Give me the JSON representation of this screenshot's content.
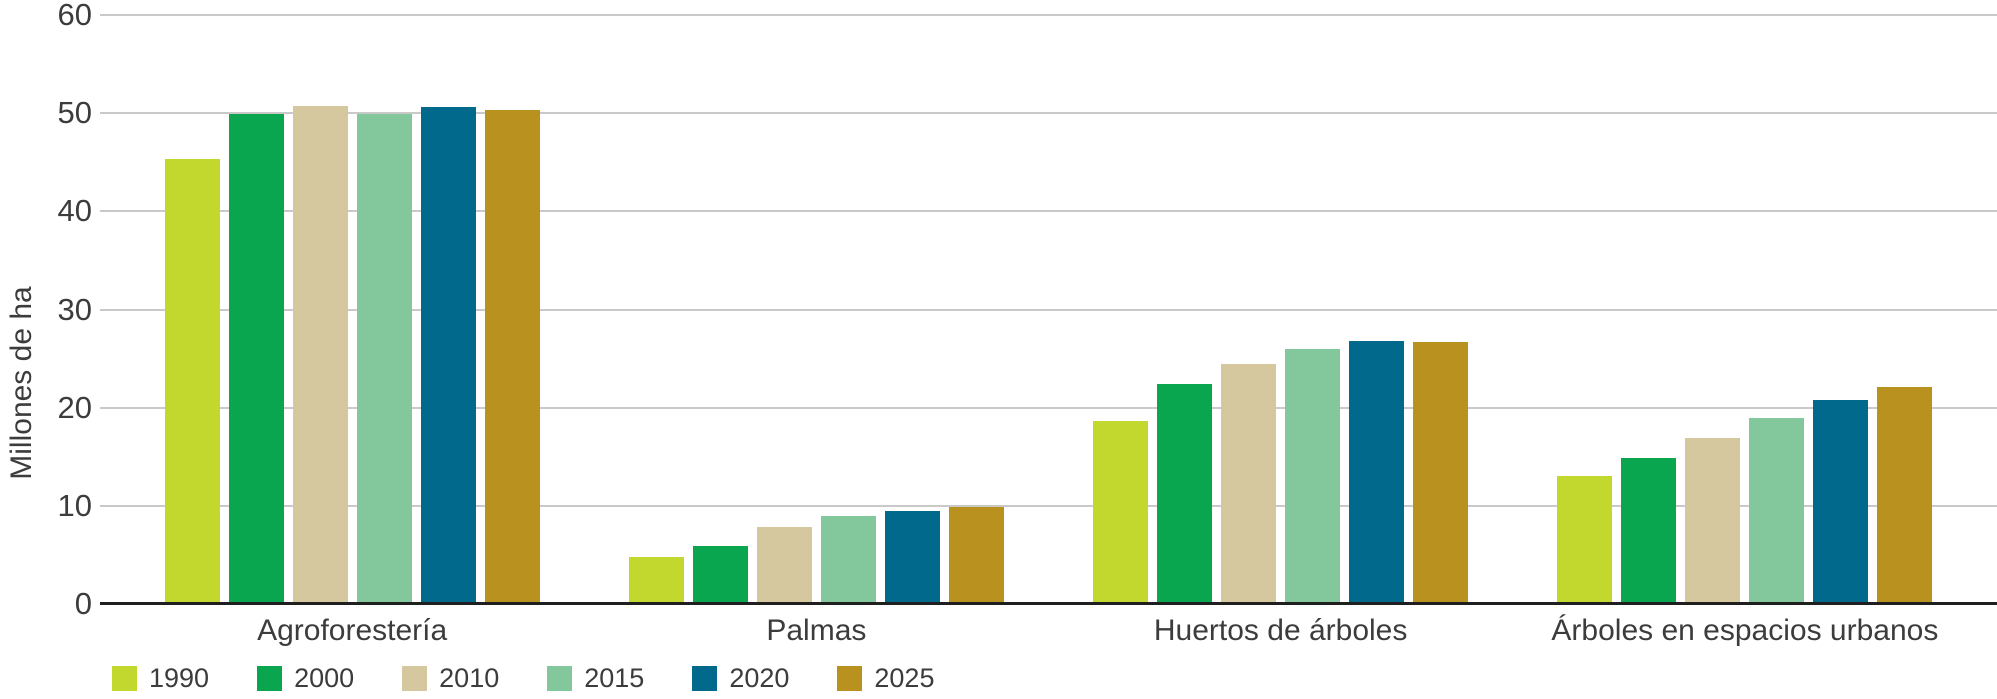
{
  "chart_data": {
    "type": "bar",
    "title": "",
    "ylabel": "Millones de ha",
    "xlabel": "",
    "ylim": [
      0,
      60
    ],
    "yticks": [
      0,
      10,
      20,
      30,
      40,
      50,
      60
    ],
    "grid": "horizontal",
    "legend_position": "bottom-left",
    "categories": [
      "Agroforestería",
      "Palmas",
      "Huertos de árboles",
      "Árboles en espacios urbanos"
    ],
    "series": [
      {
        "name": "1990",
        "color": "#c3d82f",
        "values": [
          45.3,
          4.8,
          18.6,
          13.0
        ]
      },
      {
        "name": "2000",
        "color": "#0aa54f",
        "values": [
          49.9,
          5.9,
          22.4,
          14.9
        ]
      },
      {
        "name": "2010",
        "color": "#d5c79e",
        "values": [
          50.7,
          7.8,
          24.4,
          16.9
        ]
      },
      {
        "name": "2015",
        "color": "#83c79d",
        "values": [
          49.9,
          9.0,
          26.0,
          18.9
        ]
      },
      {
        "name": "2020",
        "color": "#01698b",
        "values": [
          50.6,
          9.5,
          26.8,
          20.8
        ]
      },
      {
        "name": "2025",
        "color": "#b8911f",
        "values": [
          50.3,
          9.9,
          26.7,
          22.1
        ]
      }
    ],
    "colors": {
      "gridline": "#c9c9c9",
      "axis_line": "#1f1f1f",
      "text": "#3c3c3c"
    }
  }
}
